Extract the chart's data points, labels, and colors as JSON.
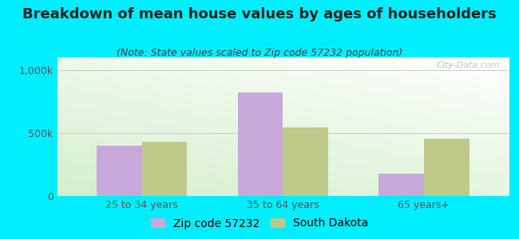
{
  "title": "Breakdown of mean house values by ages of householders",
  "subtitle": "(Note: State values scaled to Zip code 57232 population)",
  "categories": [
    "25 to 34 years",
    "35 to 64 years",
    "65 years+"
  ],
  "zip_values": [
    400000,
    820000,
    175000
  ],
  "state_values": [
    430000,
    545000,
    455000
  ],
  "zip_color": "#c9a8dc",
  "state_color": "#beca8a",
  "background_outer": "#00eeff",
  "ylim": [
    0,
    1100000
  ],
  "yticks": [
    0,
    500000,
    1000000
  ],
  "yticklabels": [
    "0",
    "500k",
    "1,000k"
  ],
  "bar_width": 0.32,
  "legend_zip_label": "Zip code 57232",
  "legend_state_label": "South Dakota",
  "watermark": "City-Data.com",
  "title_fontsize": 13,
  "subtitle_fontsize": 9,
  "tick_fontsize": 9,
  "legend_fontsize": 10,
  "title_color": "#222222",
  "subtitle_color": "#444444",
  "tick_color": "#555555",
  "grid_color": "#cccccc"
}
